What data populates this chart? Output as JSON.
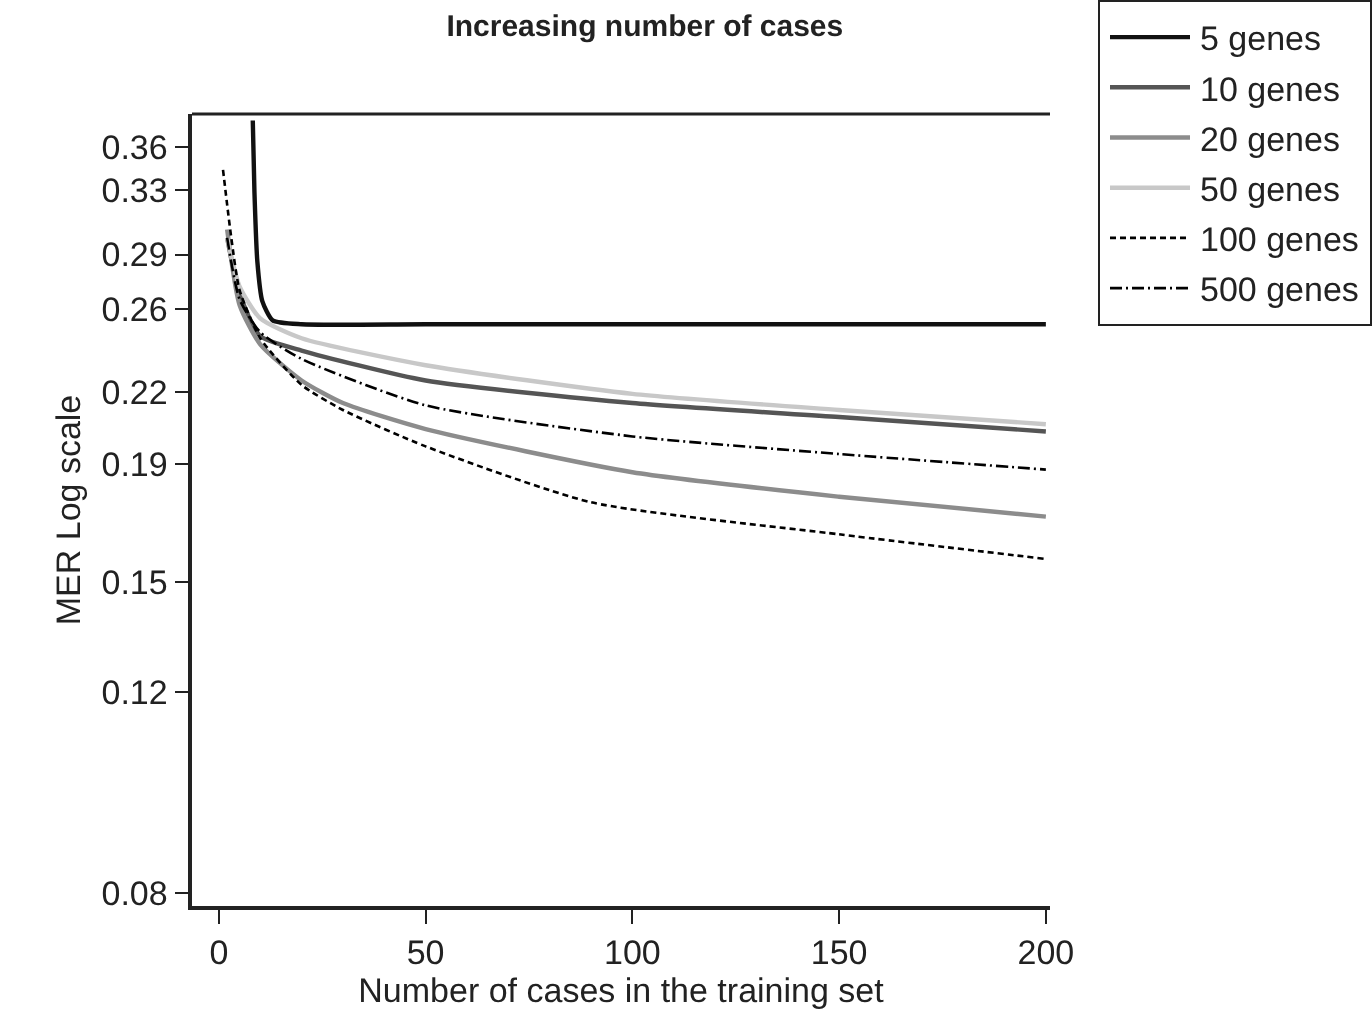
{
  "chart_data": {
    "type": "line",
    "title": "Increasing number of cases",
    "xlabel": "Number of cases in the training set",
    "ylabel": "MER Log scale",
    "log": "y",
    "legend": "top right",
    "marker": "none",
    "xlim": [
      -6.5,
      201
    ],
    "xticks": [
      0,
      50,
      100,
      150,
      200
    ],
    "ylim": [
      0.078,
      0.385
    ],
    "yticks": [
      0.08,
      0.12,
      0.15,
      0.19,
      0.22,
      0.26,
      0.29,
      0.33,
      0.36
    ],
    "series": [
      {
        "name": "5 genes",
        "color": "#111111",
        "line_style": "solid",
        "x": [
          8.2,
          8.6,
          9.3,
          10.5,
          13,
          20,
          50,
          100,
          150,
          200
        ],
        "values": [
          0.38,
          0.329,
          0.286,
          0.264,
          0.254,
          0.252,
          0.252,
          0.252,
          0.252,
          0.252
        ]
      },
      {
        "name": "10 genes",
        "color": "#555555",
        "line_style": "solid",
        "x": [
          2,
          5,
          10,
          20,
          50,
          100,
          150,
          200
        ],
        "values": [
          0.3,
          0.268,
          0.246,
          0.239,
          0.225,
          0.215,
          0.209,
          0.203
        ]
      },
      {
        "name": "20 genes",
        "color": "#8c8c8c",
        "line_style": "solid",
        "x": [
          2,
          5,
          10,
          20,
          30,
          50,
          100,
          150,
          200
        ],
        "values": [
          0.305,
          0.262,
          0.242,
          0.225,
          0.215,
          0.204,
          0.187,
          0.178,
          0.171
        ]
      },
      {
        "name": "50 genes",
        "color": "#c8c8c8",
        "line_style": "solid",
        "x": [
          2,
          5,
          10,
          20,
          50,
          100,
          150,
          200
        ],
        "values": [
          0.3,
          0.272,
          0.255,
          0.245,
          0.232,
          0.219,
          0.212,
          0.206
        ]
      },
      {
        "name": "100 genes",
        "color": "#000000",
        "line_style": "dashed",
        "x": [
          1,
          3,
          5,
          10,
          20,
          30,
          50,
          90,
          150,
          200
        ],
        "values": [
          0.344,
          0.3,
          0.27,
          0.245,
          0.223,
          0.212,
          0.197,
          0.176,
          0.165,
          0.157
        ]
      },
      {
        "name": "500 genes",
        "color": "#000000",
        "line_style": "dashdot",
        "x": [
          2,
          5,
          10,
          20,
          50,
          100,
          150,
          200
        ],
        "values": [
          0.3,
          0.265,
          0.248,
          0.235,
          0.214,
          0.201,
          0.194,
          0.188
        ]
      }
    ]
  }
}
